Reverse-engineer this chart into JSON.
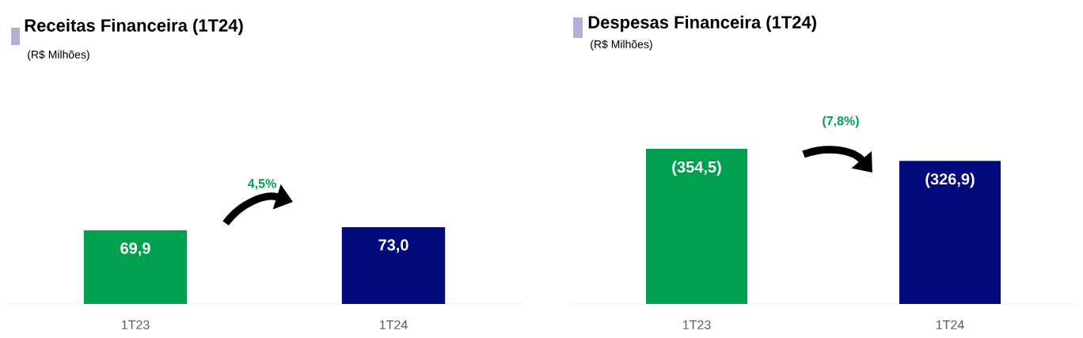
{
  "chart_data": [
    {
      "type": "bar",
      "title": "Receitas Financeira (1T24)",
      "subtitle": "(R$ Milhões)",
      "categories": [
        "1T23",
        "1T24"
      ],
      "values": [
        69.9,
        73.0
      ],
      "colors": [
        "#00a04f",
        "#020a7d"
      ],
      "value_labels": [
        "69,9",
        "73,0"
      ],
      "annotations": [
        "4,5%"
      ]
    },
    {
      "type": "bar",
      "title": "Despesas Financeira (1T24)",
      "subtitle": "(R$ Milhões)",
      "categories": [
        "1T23",
        "1T24"
      ],
      "values": [
        354.5,
        326.9
      ],
      "colors": [
        "#00a04f",
        "#020a7d"
      ],
      "value_labels": [
        "(354,5)",
        "(326,9)"
      ],
      "annotations": [
        "(7,8%)"
      ]
    }
  ]
}
